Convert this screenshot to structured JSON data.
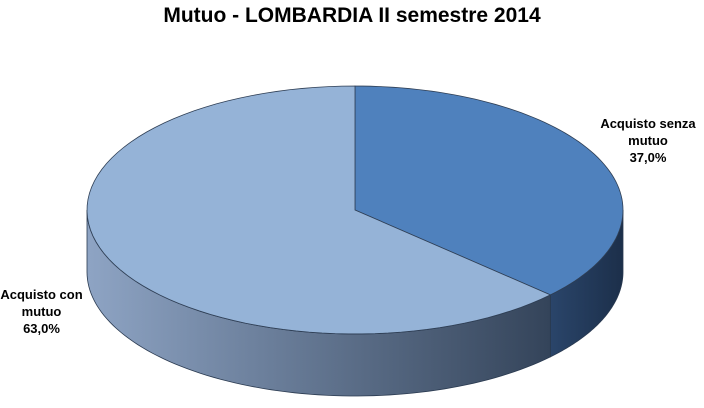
{
  "chart_data": {
    "type": "pie",
    "title": "Mutuo - LOMBARDIA II semestre 2014",
    "categories": [
      "Acquisto senza mutuo",
      "Acquisto con mutuo"
    ],
    "values": [
      37,
      63
    ],
    "value_labels": [
      "37,0%",
      "63,0%"
    ],
    "colors": [
      "#4f81bd",
      "#95b3d7"
    ]
  }
}
